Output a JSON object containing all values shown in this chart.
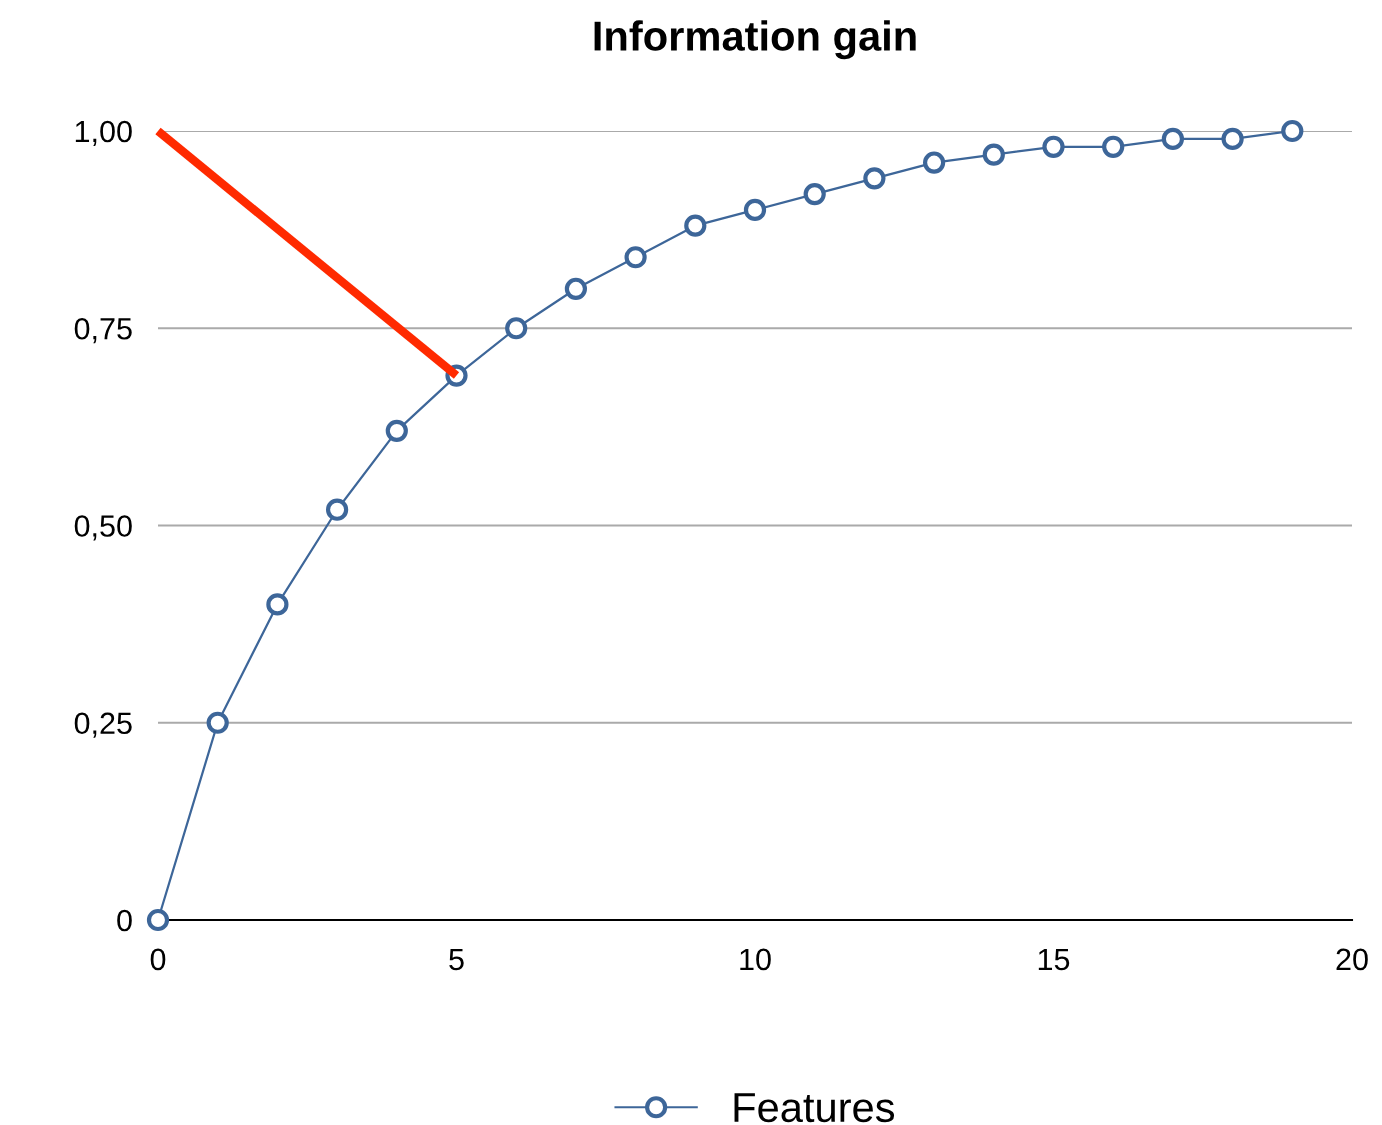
{
  "chart_data": {
    "type": "line",
    "title": "Information gain",
    "x": [
      0,
      1,
      2,
      3,
      4,
      5,
      6,
      7,
      8,
      9,
      10,
      11,
      12,
      13,
      14,
      15,
      16,
      17,
      18,
      19
    ],
    "series": [
      {
        "name": "Features",
        "color": "#3d6699",
        "marker": "circle",
        "values": [
          0,
          0.25,
          0.4,
          0.52,
          0.62,
          0.69,
          0.75,
          0.8,
          0.84,
          0.88,
          0.9,
          0.92,
          0.94,
          0.96,
          0.97,
          0.98,
          0.98,
          0.99,
          0.99,
          1.0
        ]
      },
      {
        "color": "#ff2a00",
        "marker": "none",
        "x": [
          0,
          5
        ],
        "values": [
          1.0,
          0.69
        ]
      }
    ],
    "xlim": [
      0,
      20
    ],
    "xticks": [
      0,
      5,
      10,
      15,
      20
    ],
    "ylim": [
      0,
      1
    ],
    "yticks": [
      {
        "value": 0,
        "label": "0"
      },
      {
        "value": 0.25,
        "label": "0,25"
      },
      {
        "value": 0.5,
        "label": "0,50"
      },
      {
        "value": 0.75,
        "label": "0,75"
      },
      {
        "value": 1,
        "label": "1,00"
      }
    ],
    "grid": "y",
    "legend": "bottom"
  }
}
